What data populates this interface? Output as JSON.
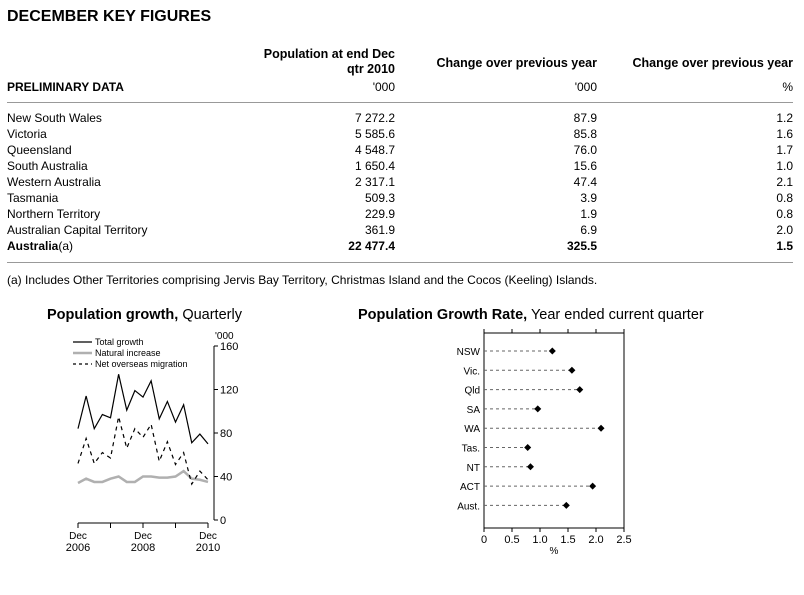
{
  "title": "DECEMBER KEY FIGURES",
  "table": {
    "row_header": "PRELIMINARY DATA",
    "columns": [
      {
        "label_line1": "Population at end Dec",
        "label_line2": "qtr 2010",
        "unit": "'000"
      },
      {
        "label_line1": "Change over previous year",
        "label_line2": "",
        "unit": "'000"
      },
      {
        "label_line1": "Change over previous year",
        "label_line2": "",
        "unit": "%"
      }
    ],
    "rows": [
      {
        "name": "New South Wales",
        "pop": "7 272.2",
        "chg": "87.9",
        "pct": "1.2"
      },
      {
        "name": "Victoria",
        "pop": "5 585.6",
        "chg": "85.8",
        "pct": "1.6"
      },
      {
        "name": "Queensland",
        "pop": "4 548.7",
        "chg": "76.0",
        "pct": "1.7"
      },
      {
        "name": "South Australia",
        "pop": "1 650.4",
        "chg": "15.6",
        "pct": "1.0"
      },
      {
        "name": "Western Australia",
        "pop": "2 317.1",
        "chg": "47.4",
        "pct": "2.1"
      },
      {
        "name": "Tasmania",
        "pop": "509.3",
        "chg": "3.9",
        "pct": "0.8"
      },
      {
        "name": "Northern Territory",
        "pop": "229.9",
        "chg": "1.9",
        "pct": "0.8"
      },
      {
        "name": "Australian Capital Territory",
        "pop": "361.9",
        "chg": "6.9",
        "pct": "2.0"
      }
    ],
    "total": {
      "name": "Australia",
      "suffix": "(a)",
      "pop": "22 477.4",
      "chg": "325.5",
      "pct": "1.5"
    }
  },
  "footnote": "(a) Includes Other Territories comprising Jervis Bay Territory, Christmas Island and the Cocos (Keeling) Islands.",
  "chart_data": [
    {
      "type": "line",
      "title_bold": "Population growth,",
      "title_rest": " Quarterly",
      "ylabel": "'000",
      "ylim": [
        0,
        160
      ],
      "yticks": [
        0,
        40,
        80,
        120,
        160
      ],
      "xticks": [
        {
          "l1": "Dec",
          "l2": "2006"
        },
        {
          "l1": "Dec",
          "l2": "2008"
        },
        {
          "l1": "Dec",
          "l2": "2010"
        }
      ],
      "series": [
        {
          "name": "Total growth",
          "style": "solid",
          "color": "#000000",
          "values": [
            84,
            114,
            84,
            97,
            94,
            134,
            101,
            119,
            113,
            128,
            93,
            109,
            90,
            106,
            71,
            79,
            70
          ]
        },
        {
          "name": "Natural increase",
          "style": "solid",
          "color": "#b0b0b0",
          "values": [
            34,
            38,
            35,
            35,
            38,
            40,
            35,
            35,
            40,
            40,
            39,
            39,
            40,
            45,
            38,
            37,
            35
          ]
        },
        {
          "name": "Net overseas migration",
          "style": "dashed",
          "color": "#000000",
          "values": [
            52,
            75,
            52,
            62,
            57,
            95,
            66,
            84,
            76,
            88,
            54,
            72,
            51,
            62,
            33,
            45,
            37
          ]
        }
      ],
      "legend": "top-left"
    },
    {
      "type": "scatter",
      "title_bold": "Population Growth Rate,",
      "title_rest": " Year ended current quarter",
      "xlabel": "%",
      "xlim": [
        0,
        2.5
      ],
      "xticks": [
        "0",
        "0.5",
        "1.0",
        "1.5",
        "2.0",
        "2.5"
      ],
      "categories": [
        "NSW",
        "Vic.",
        "Qld",
        "SA",
        "WA",
        "Tas.",
        "NT",
        "ACT",
        "Aust."
      ],
      "values": [
        1.22,
        1.57,
        1.71,
        0.96,
        2.09,
        0.78,
        0.83,
        1.94,
        1.47
      ]
    }
  ]
}
